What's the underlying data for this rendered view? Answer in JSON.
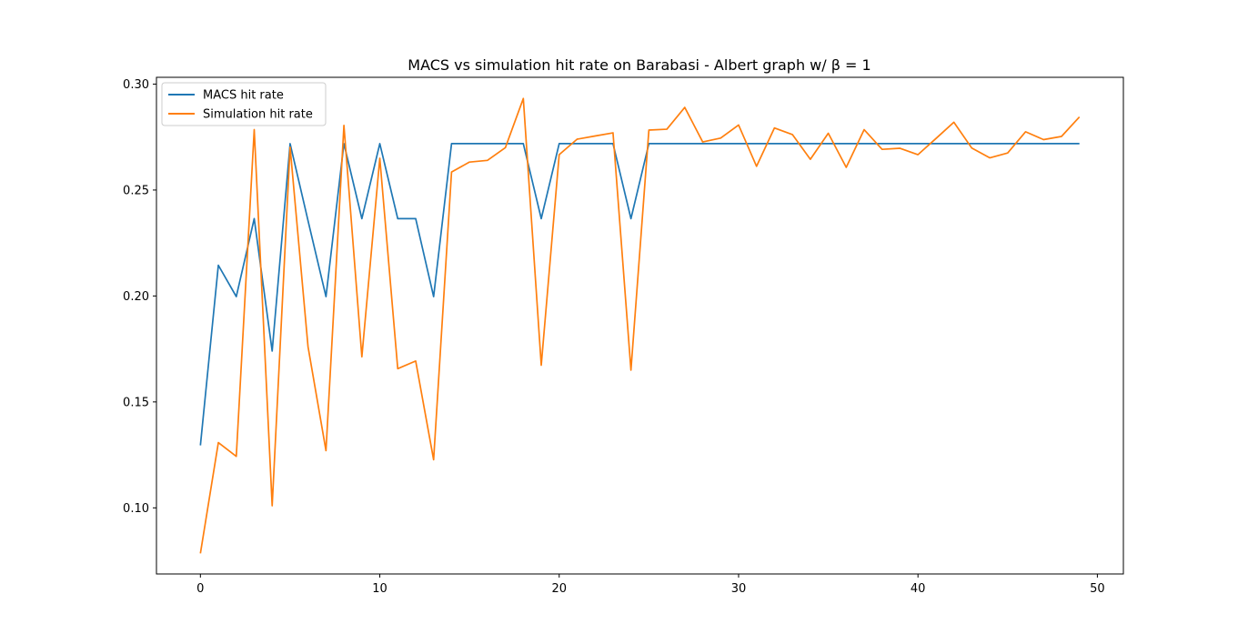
{
  "chart_data": {
    "type": "line",
    "title": "MACS vs simulation hit rate on Barabasi - Albert graph w/ β = 1",
    "xlabel": "",
    "ylabel": "",
    "xlim": [
      -2.45,
      51.45
    ],
    "ylim": [
      0.0688,
      0.3032
    ],
    "xticks": [
      0,
      10,
      20,
      30,
      40,
      50
    ],
    "yticks": [
      0.1,
      0.15,
      0.2,
      0.25,
      0.3
    ],
    "ytick_labels": [
      "0.10",
      "0.15",
      "0.20",
      "0.25",
      "0.30"
    ],
    "grid": false,
    "legend_position": "upper-left",
    "x": [
      0,
      1,
      2,
      3,
      4,
      5,
      6,
      7,
      8,
      9,
      10,
      11,
      12,
      13,
      14,
      15,
      16,
      17,
      18,
      19,
      20,
      21,
      22,
      23,
      24,
      25,
      26,
      27,
      28,
      29,
      30,
      31,
      32,
      33,
      34,
      35,
      36,
      37,
      38,
      39,
      40,
      41,
      42,
      43,
      44,
      45,
      46,
      47,
      48,
      49
    ],
    "series": [
      {
        "name": "MACS hit rate",
        "color": "#1f77b4",
        "values": [
          0.1295,
          0.2145,
          0.1997,
          0.2365,
          0.174,
          0.2719,
          0.2355,
          0.1997,
          0.2719,
          0.2365,
          0.2719,
          0.2365,
          0.2365,
          0.1997,
          0.2719,
          0.2719,
          0.2719,
          0.2719,
          0.2719,
          0.2365,
          0.2719,
          0.2719,
          0.2719,
          0.2719,
          0.2365,
          0.2719,
          0.2719,
          0.2719,
          0.2719,
          0.2719,
          0.2719,
          0.2719,
          0.2719,
          0.2719,
          0.2719,
          0.2719,
          0.2719,
          0.2719,
          0.2719,
          0.2719,
          0.2719,
          0.2719,
          0.2719,
          0.2719,
          0.2719,
          0.2719,
          0.2719,
          0.2719,
          0.2719,
          0.2719
        ]
      },
      {
        "name": "Simulation hit rate",
        "color": "#ff7f0e",
        "values": [
          0.0785,
          0.1308,
          0.1243,
          0.2785,
          0.101,
          0.2702,
          0.176,
          0.127,
          0.2805,
          0.1713,
          0.265,
          0.1657,
          0.1693,
          0.1227,
          0.2585,
          0.2632,
          0.264,
          0.27,
          0.2932,
          0.1673,
          0.2667,
          0.274,
          0.2755,
          0.277,
          0.165,
          0.2783,
          0.2787,
          0.289,
          0.2727,
          0.2745,
          0.2807,
          0.2612,
          0.2793,
          0.2762,
          0.2645,
          0.2768,
          0.2607,
          0.2785,
          0.2692,
          0.2697,
          0.2667,
          0.2743,
          0.282,
          0.2698,
          0.2652,
          0.2675,
          0.2775,
          0.2738,
          0.2753,
          0.2845
        ]
      }
    ]
  }
}
